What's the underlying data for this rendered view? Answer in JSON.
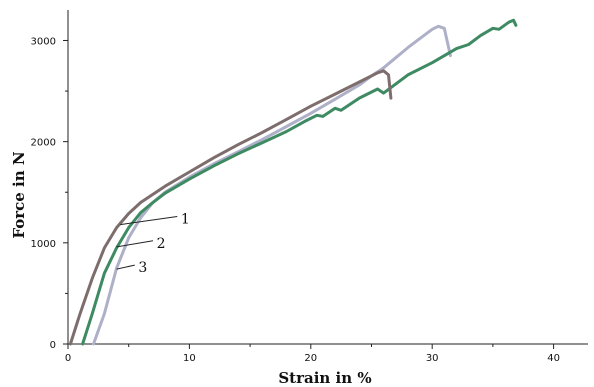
{
  "chart_data": {
    "type": "line",
    "title": "",
    "xlabel": "Strain in %",
    "ylabel": "Force in N",
    "xlim": [
      0,
      43
    ],
    "ylim": [
      0,
      3400
    ],
    "grid": false,
    "x_ticks": [
      0,
      10,
      20,
      30,
      40
    ],
    "y_ticks": [
      0,
      1000,
      2000,
      3000
    ],
    "series": [
      {
        "name": "1",
        "color": "#7d6d6c",
        "points": [
          [
            0.2,
            0
          ],
          [
            1,
            300
          ],
          [
            2,
            650
          ],
          [
            3,
            950
          ],
          [
            4,
            1150
          ],
          [
            5,
            1290
          ],
          [
            6,
            1400
          ],
          [
            8,
            1560
          ],
          [
            10,
            1700
          ],
          [
            12,
            1840
          ],
          [
            14,
            1970
          ],
          [
            16,
            2090
          ],
          [
            18,
            2220
          ],
          [
            20,
            2350
          ],
          [
            22,
            2470
          ],
          [
            24,
            2590
          ],
          [
            25.5,
            2680
          ],
          [
            26,
            2700
          ],
          [
            26.4,
            2660
          ],
          [
            26.6,
            2430
          ]
        ]
      },
      {
        "name": "2",
        "color": "#3e8a62",
        "points": [
          [
            1.2,
            0
          ],
          [
            2,
            300
          ],
          [
            3,
            700
          ],
          [
            4,
            950
          ],
          [
            5,
            1150
          ],
          [
            6,
            1300
          ],
          [
            7,
            1400
          ],
          [
            8,
            1490
          ],
          [
            10,
            1630
          ],
          [
            12,
            1760
          ],
          [
            14,
            1880
          ],
          [
            16,
            1990
          ],
          [
            18,
            2100
          ],
          [
            19.5,
            2200
          ],
          [
            20.5,
            2260
          ],
          [
            21,
            2250
          ],
          [
            22,
            2330
          ],
          [
            22.5,
            2310
          ],
          [
            24,
            2430
          ],
          [
            25.5,
            2520
          ],
          [
            26,
            2480
          ],
          [
            28,
            2660
          ],
          [
            30,
            2780
          ],
          [
            32,
            2920
          ],
          [
            33,
            2960
          ],
          [
            34,
            3050
          ],
          [
            35,
            3120
          ],
          [
            35.5,
            3110
          ],
          [
            36.3,
            3180
          ],
          [
            36.7,
            3200
          ],
          [
            36.9,
            3150
          ]
        ]
      },
      {
        "name": "3",
        "color": "#aeb0c8",
        "points": [
          [
            2.1,
            0
          ],
          [
            3,
            300
          ],
          [
            4,
            750
          ],
          [
            5,
            1050
          ],
          [
            6,
            1250
          ],
          [
            7,
            1400
          ],
          [
            8,
            1500
          ],
          [
            10,
            1650
          ],
          [
            12,
            1780
          ],
          [
            14,
            1900
          ],
          [
            16,
            2020
          ],
          [
            18,
            2150
          ],
          [
            20,
            2280
          ],
          [
            22,
            2420
          ],
          [
            24,
            2560
          ],
          [
            25,
            2650
          ],
          [
            26,
            2730
          ],
          [
            27,
            2830
          ],
          [
            28,
            2930
          ],
          [
            29,
            3020
          ],
          [
            30,
            3110
          ],
          [
            30.5,
            3140
          ],
          [
            31,
            3120
          ],
          [
            31.5,
            2850
          ]
        ]
      }
    ],
    "annotations": [
      "1",
      "2",
      "3"
    ]
  }
}
